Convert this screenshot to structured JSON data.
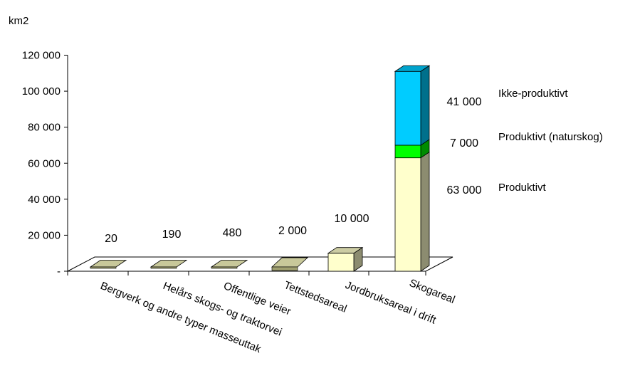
{
  "chart_data": {
    "type": "bar",
    "title": "",
    "ylabel": "km2",
    "xlabel": "",
    "ylim": [
      0,
      120000
    ],
    "yticks": [
      {
        "value": 0,
        "label": "-"
      },
      {
        "value": 20000,
        "label": "20 000"
      },
      {
        "value": 40000,
        "label": "40 000"
      },
      {
        "value": 60000,
        "label": "60 000"
      },
      {
        "value": 80000,
        "label": "80 000"
      },
      {
        "value": 100000,
        "label": "100 000"
      },
      {
        "value": 120000,
        "label": "120 000"
      }
    ],
    "categories": [
      "Bergverk og andre typer masseuttak",
      "Helårs skogs- og traktorvei",
      "Offentlige veier",
      "Tettstedsareal",
      "Jordbruksareal i drift",
      "Skogareal"
    ],
    "values": [
      20,
      190,
      480,
      2000,
      10000,
      111000
    ],
    "value_labels": [
      "20",
      "190",
      "480",
      "2 000",
      "10 000",
      ""
    ],
    "stack": {
      "category": "Skogareal",
      "segments": [
        {
          "name": "Produktivt",
          "value": 63000,
          "label": "63 000",
          "color": "#ffffcc"
        },
        {
          "name": "Produktivt  (naturskog)",
          "value": 7000,
          "label": "7 000",
          "color": "#00ff00"
        },
        {
          "name": "Ikke-produktivt",
          "value": 41000,
          "label": "41 000",
          "color": "#00ccff"
        }
      ]
    },
    "bar_color": "#ffffcc",
    "grid": false,
    "legend": "none"
  }
}
